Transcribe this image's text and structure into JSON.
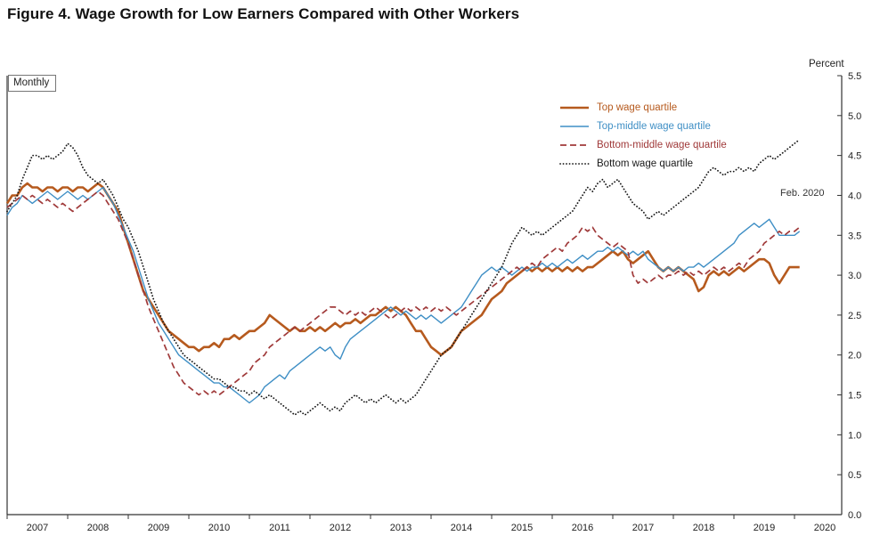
{
  "figure_title": "Figure 4. Wage Growth for Low Earners Compared with Other Workers",
  "chart_data": {
    "type": "line",
    "frequency_label": "Monthly",
    "unit_label": "Percent",
    "annotation": "Feb. 2020",
    "x_first": "2007-01",
    "x_last": "2020-02",
    "x_tick_labels": [
      "2007",
      "2008",
      "2009",
      "2010",
      "2011",
      "2012",
      "2013",
      "2014",
      "2015",
      "2016",
      "2017",
      "2018",
      "2019",
      "2020"
    ],
    "y_tick_labels": [
      "0.0",
      "0.5",
      "1.0",
      "1.5",
      "2.0",
      "2.5",
      "3.0",
      "3.5",
      "4.0",
      "4.5",
      "5.0",
      "5.5"
    ],
    "ylim": [
      0.0,
      5.5
    ],
    "grid": false,
    "legend_position": "inside-top-right",
    "series": [
      {
        "name": "Top wage quartile",
        "color": "#b65a1e",
        "style": "solid-thick",
        "values": [
          3.9,
          4.0,
          4.0,
          4.1,
          4.15,
          4.1,
          4.1,
          4.05,
          4.1,
          4.1,
          4.05,
          4.1,
          4.1,
          4.05,
          4.1,
          4.1,
          4.05,
          4.1,
          4.15,
          4.1,
          4.0,
          3.9,
          3.8,
          3.6,
          3.4,
          3.2,
          3.0,
          2.8,
          2.7,
          2.6,
          2.5,
          2.4,
          2.3,
          2.25,
          2.2,
          2.15,
          2.1,
          2.1,
          2.05,
          2.1,
          2.1,
          2.15,
          2.1,
          2.2,
          2.2,
          2.25,
          2.2,
          2.25,
          2.3,
          2.3,
          2.35,
          2.4,
          2.5,
          2.45,
          2.4,
          2.35,
          2.3,
          2.35,
          2.3,
          2.3,
          2.35,
          2.3,
          2.35,
          2.3,
          2.35,
          2.4,
          2.35,
          2.4,
          2.4,
          2.45,
          2.4,
          2.45,
          2.5,
          2.5,
          2.55,
          2.6,
          2.55,
          2.6,
          2.55,
          2.5,
          2.4,
          2.3,
          2.3,
          2.2,
          2.1,
          2.05,
          2.0,
          2.05,
          2.1,
          2.2,
          2.3,
          2.35,
          2.4,
          2.45,
          2.5,
          2.6,
          2.7,
          2.75,
          2.8,
          2.9,
          2.95,
          3.0,
          3.05,
          3.1,
          3.05,
          3.1,
          3.05,
          3.1,
          3.05,
          3.1,
          3.05,
          3.1,
          3.05,
          3.1,
          3.05,
          3.1,
          3.1,
          3.15,
          3.2,
          3.25,
          3.3,
          3.25,
          3.3,
          3.2,
          3.15,
          3.2,
          3.25,
          3.3,
          3.2,
          3.1,
          3.05,
          3.1,
          3.05,
          3.1,
          3.05,
          3.0,
          2.95,
          2.8,
          2.85,
          3.0,
          3.05,
          3.0,
          3.05,
          3.0,
          3.05,
          3.1,
          3.05,
          3.1,
          3.15,
          3.2,
          3.2,
          3.15,
          3.0,
          2.9,
          3.0,
          3.1,
          3.1,
          3.1
        ]
      },
      {
        "name": "Top-middle wage quartile",
        "color": "#3f8fc5",
        "style": "solid",
        "values": [
          3.75,
          3.85,
          3.9,
          4.0,
          3.95,
          3.9,
          3.95,
          4.0,
          4.05,
          4.0,
          3.95,
          4.0,
          4.05,
          4.0,
          3.95,
          4.0,
          3.95,
          4.0,
          4.05,
          4.1,
          4.0,
          3.9,
          3.75,
          3.6,
          3.45,
          3.3,
          3.1,
          2.9,
          2.7,
          2.55,
          2.4,
          2.3,
          2.2,
          2.1,
          2.0,
          1.95,
          1.9,
          1.85,
          1.8,
          1.75,
          1.7,
          1.65,
          1.65,
          1.6,
          1.6,
          1.55,
          1.5,
          1.45,
          1.4,
          1.45,
          1.5,
          1.6,
          1.65,
          1.7,
          1.75,
          1.7,
          1.8,
          1.85,
          1.9,
          1.95,
          2.0,
          2.05,
          2.1,
          2.05,
          2.1,
          2.0,
          1.95,
          2.1,
          2.2,
          2.25,
          2.3,
          2.35,
          2.4,
          2.45,
          2.5,
          2.55,
          2.6,
          2.55,
          2.5,
          2.55,
          2.5,
          2.45,
          2.5,
          2.45,
          2.5,
          2.45,
          2.4,
          2.45,
          2.5,
          2.55,
          2.6,
          2.7,
          2.8,
          2.9,
          3.0,
          3.05,
          3.1,
          3.05,
          3.1,
          3.05,
          3.0,
          3.05,
          3.1,
          3.05,
          3.1,
          3.1,
          3.15,
          3.1,
          3.15,
          3.1,
          3.15,
          3.2,
          3.15,
          3.2,
          3.25,
          3.2,
          3.25,
          3.3,
          3.3,
          3.35,
          3.3,
          3.35,
          3.3,
          3.25,
          3.3,
          3.25,
          3.3,
          3.2,
          3.15,
          3.1,
          3.05,
          3.1,
          3.05,
          3.1,
          3.05,
          3.1,
          3.1,
          3.15,
          3.1,
          3.15,
          3.2,
          3.25,
          3.3,
          3.35,
          3.4,
          3.5,
          3.55,
          3.6,
          3.65,
          3.6,
          3.65,
          3.7,
          3.6,
          3.5,
          3.5,
          3.5,
          3.5,
          3.55
        ]
      },
      {
        "name": "Bottom-middle wage quartile",
        "color": "#a03a3a",
        "style": "dashed",
        "values": [
          3.85,
          3.9,
          3.95,
          4.0,
          3.95,
          4.0,
          3.95,
          3.9,
          3.95,
          3.9,
          3.85,
          3.9,
          3.85,
          3.8,
          3.85,
          3.9,
          3.95,
          4.0,
          4.05,
          4.0,
          3.9,
          3.8,
          3.7,
          3.55,
          3.4,
          3.2,
          3.0,
          2.8,
          2.6,
          2.45,
          2.3,
          2.15,
          2.0,
          1.85,
          1.75,
          1.65,
          1.6,
          1.55,
          1.5,
          1.55,
          1.5,
          1.55,
          1.5,
          1.55,
          1.6,
          1.65,
          1.7,
          1.75,
          1.8,
          1.9,
          1.95,
          2.0,
          2.1,
          2.15,
          2.2,
          2.25,
          2.3,
          2.35,
          2.3,
          2.35,
          2.4,
          2.45,
          2.5,
          2.55,
          2.6,
          2.6,
          2.55,
          2.5,
          2.55,
          2.5,
          2.55,
          2.5,
          2.55,
          2.6,
          2.55,
          2.5,
          2.45,
          2.5,
          2.55,
          2.6,
          2.55,
          2.6,
          2.55,
          2.6,
          2.55,
          2.6,
          2.55,
          2.6,
          2.55,
          2.5,
          2.55,
          2.6,
          2.65,
          2.7,
          2.75,
          2.8,
          2.85,
          2.9,
          2.95,
          3.0,
          3.05,
          3.1,
          3.05,
          3.1,
          3.15,
          3.1,
          3.2,
          3.25,
          3.3,
          3.35,
          3.3,
          3.4,
          3.45,
          3.5,
          3.6,
          3.55,
          3.6,
          3.5,
          3.45,
          3.4,
          3.35,
          3.4,
          3.35,
          3.3,
          3.0,
          2.9,
          2.95,
          2.9,
          2.95,
          3.0,
          2.95,
          3.0,
          3.0,
          3.05,
          3.0,
          3.05,
          3.0,
          3.05,
          3.0,
          3.05,
          3.1,
          3.05,
          3.1,
          3.05,
          3.1,
          3.15,
          3.1,
          3.2,
          3.25,
          3.3,
          3.4,
          3.45,
          3.5,
          3.55,
          3.5,
          3.55,
          3.55,
          3.6
        ]
      },
      {
        "name": "Bottom wage quartile",
        "color": "#1a1a1a",
        "style": "dotted",
        "values": [
          3.8,
          3.9,
          4.0,
          4.2,
          4.35,
          4.5,
          4.5,
          4.45,
          4.5,
          4.45,
          4.5,
          4.55,
          4.65,
          4.6,
          4.5,
          4.35,
          4.25,
          4.2,
          4.15,
          4.2,
          4.1,
          4.0,
          3.85,
          3.7,
          3.6,
          3.45,
          3.3,
          3.1,
          2.9,
          2.7,
          2.55,
          2.4,
          2.3,
          2.2,
          2.1,
          2.0,
          1.95,
          1.9,
          1.85,
          1.8,
          1.75,
          1.7,
          1.7,
          1.65,
          1.6,
          1.6,
          1.55,
          1.55,
          1.5,
          1.55,
          1.5,
          1.45,
          1.5,
          1.45,
          1.4,
          1.35,
          1.3,
          1.25,
          1.3,
          1.25,
          1.3,
          1.35,
          1.4,
          1.35,
          1.3,
          1.35,
          1.3,
          1.4,
          1.45,
          1.5,
          1.45,
          1.4,
          1.45,
          1.4,
          1.45,
          1.5,
          1.45,
          1.4,
          1.45,
          1.4,
          1.45,
          1.5,
          1.6,
          1.7,
          1.8,
          1.9,
          2.0,
          2.05,
          2.1,
          2.2,
          2.3,
          2.4,
          2.5,
          2.6,
          2.7,
          2.8,
          2.9,
          3.0,
          3.1,
          3.25,
          3.4,
          3.5,
          3.6,
          3.55,
          3.5,
          3.55,
          3.5,
          3.55,
          3.6,
          3.65,
          3.7,
          3.75,
          3.8,
          3.9,
          4.0,
          4.1,
          4.05,
          4.15,
          4.2,
          4.1,
          4.15,
          4.2,
          4.1,
          4.0,
          3.9,
          3.85,
          3.8,
          3.7,
          3.75,
          3.8,
          3.75,
          3.8,
          3.85,
          3.9,
          3.95,
          4.0,
          4.05,
          4.1,
          4.2,
          4.3,
          4.35,
          4.3,
          4.25,
          4.3,
          4.3,
          4.35,
          4.3,
          4.35,
          4.3,
          4.4,
          4.45,
          4.5,
          4.45,
          4.5,
          4.55,
          4.6,
          4.65,
          4.7
        ]
      }
    ]
  }
}
